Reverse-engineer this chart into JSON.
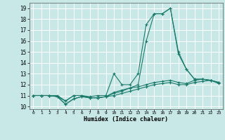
{
  "xlabel": "Humidex (Indice chaleur)",
  "bg_color": "#c8e8e8",
  "grid_color": "#ffffff",
  "line_color": "#1a7a6a",
  "xlim": [
    -0.5,
    23.5
  ],
  "ylim": [
    9.75,
    19.5
  ],
  "xticks": [
    0,
    1,
    2,
    3,
    4,
    5,
    6,
    7,
    8,
    9,
    10,
    11,
    12,
    13,
    14,
    15,
    16,
    17,
    18,
    19,
    20,
    21,
    22,
    23
  ],
  "yticks": [
    10,
    11,
    12,
    13,
    14,
    15,
    16,
    17,
    18,
    19
  ],
  "series": [
    [
      11.0,
      11.0,
      11.0,
      10.9,
      10.5,
      11.0,
      11.0,
      10.9,
      11.0,
      11.0,
      13.0,
      12.0,
      12.0,
      13.0,
      17.5,
      18.5,
      18.5,
      19.0,
      14.8,
      13.4,
      12.5,
      12.5,
      12.4,
      12.2
    ],
    [
      11.0,
      11.0,
      11.0,
      10.9,
      10.2,
      10.7,
      10.9,
      10.8,
      10.8,
      10.9,
      11.0,
      11.2,
      11.4,
      11.6,
      11.8,
      12.0,
      12.1,
      12.2,
      12.0,
      12.0,
      12.2,
      12.3,
      12.4,
      12.1
    ],
    [
      11.0,
      11.0,
      11.0,
      10.9,
      10.2,
      10.7,
      10.9,
      10.8,
      10.8,
      10.9,
      11.3,
      11.5,
      11.7,
      11.8,
      12.0,
      12.2,
      12.3,
      12.4,
      12.2,
      12.1,
      12.4,
      12.5,
      12.4,
      12.2
    ],
    [
      11.0,
      11.0,
      11.0,
      11.0,
      10.5,
      11.0,
      11.0,
      10.8,
      10.8,
      10.9,
      11.2,
      11.4,
      11.7,
      12.0,
      16.0,
      18.5,
      18.5,
      19.0,
      15.0,
      13.4,
      12.5,
      12.5,
      12.4,
      12.2
    ]
  ]
}
